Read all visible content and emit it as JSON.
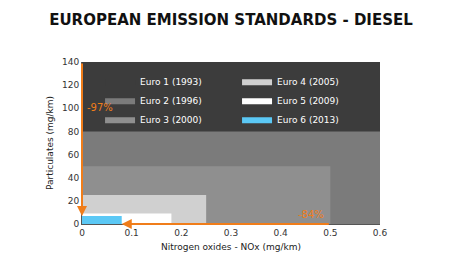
{
  "chart_data": {
    "type": "area",
    "title": "EUROPEAN EMISSION STANDARDS - DIESEL",
    "x_label": "Nitrogen oxides - NOx (mg/km)",
    "y_label": "Particulates (mg/km)",
    "series": [
      {
        "name": "Euro 1 (1993)",
        "color": "#3c3c3c",
        "nox": 0.6,
        "particulates": 140
      },
      {
        "name": "Euro 2 (1996)",
        "color": "#7b7b7b",
        "nox": 0.6,
        "particulates": 80
      },
      {
        "name": "Euro 3 (2000)",
        "color": "#8f8f8f",
        "nox": 0.5,
        "particulates": 50
      },
      {
        "name": "Euro 4 (2005)",
        "color": "#d0d0d0",
        "nox": 0.25,
        "particulates": 25
      },
      {
        "name": "Euro 5 (2009)",
        "color": "#ffffff",
        "nox": 0.18,
        "particulates": 9
      },
      {
        "name": "Euro 6 (2013)",
        "color": "#5bc8f5",
        "nox": 0.08,
        "particulates": 7
      }
    ],
    "annotations": [
      {
        "text": "-97%",
        "color": "#f07d1a"
      },
      {
        "text": "-84%",
        "color": "#f07d1a"
      }
    ],
    "xlim": [
      0,
      0.6
    ],
    "xticks": [
      0,
      0.1,
      0.2,
      0.3,
      0.4,
      0.5,
      0.6
    ],
    "ylim": [
      0,
      140
    ],
    "yticks": [
      0,
      20,
      40,
      60,
      80,
      100,
      120,
      140
    ],
    "grid": false,
    "legend": "top right"
  }
}
